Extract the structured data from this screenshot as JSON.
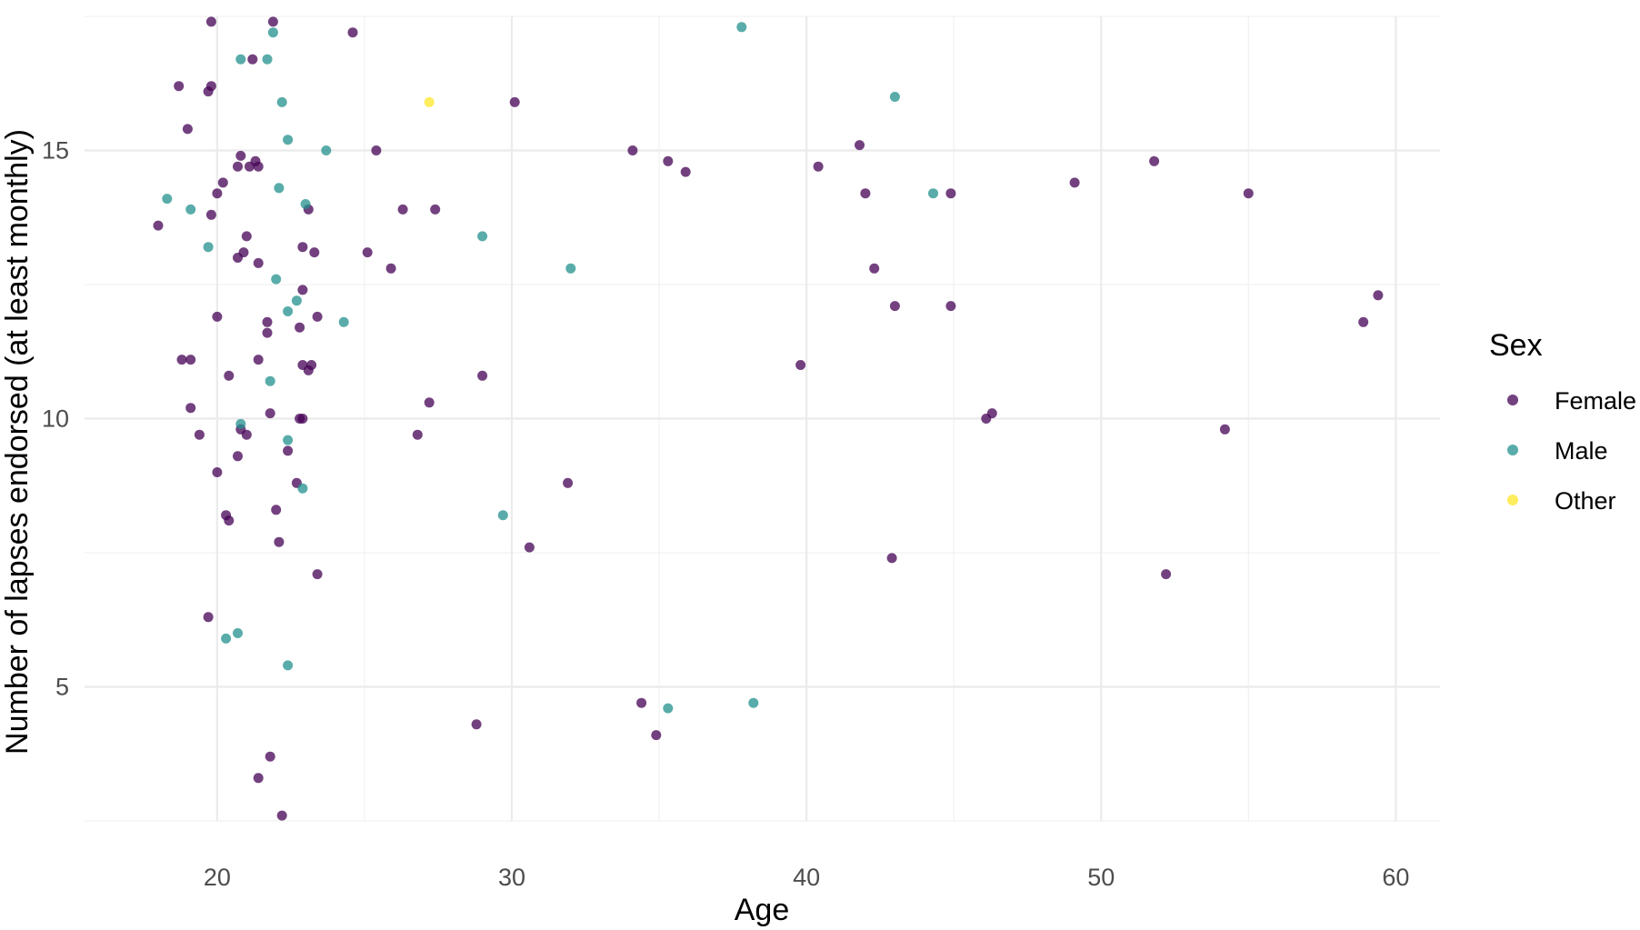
{
  "chart_data": {
    "type": "scatter",
    "title": "",
    "xlabel": "Age",
    "ylabel": "Number of lapses endorsed (at least monthly)",
    "xlim": [
      15.5,
      61.5
    ],
    "ylim": [
      2.5,
      17.5
    ],
    "xticks": [
      20,
      30,
      40,
      50,
      60
    ],
    "yticks": [
      5,
      10,
      15
    ],
    "grid": true,
    "legend": {
      "title": "Sex",
      "position": "right"
    },
    "series": [
      {
        "name": "Female",
        "color": "#440154",
        "points": [
          [
            19.8,
            17.4
          ],
          [
            21.9,
            17.4
          ],
          [
            24.6,
            17.2
          ],
          [
            21.2,
            16.7
          ],
          [
            18.7,
            16.2
          ],
          [
            19.8,
            16.2
          ],
          [
            19.7,
            16.1
          ],
          [
            19.0,
            15.4
          ],
          [
            30.1,
            15.9
          ],
          [
            25.4,
            15.0
          ],
          [
            34.1,
            15.0
          ],
          [
            41.8,
            15.1
          ],
          [
            20.8,
            14.9
          ],
          [
            21.3,
            14.8
          ],
          [
            21.1,
            14.7
          ],
          [
            20.7,
            14.7
          ],
          [
            21.4,
            14.7
          ],
          [
            35.3,
            14.8
          ],
          [
            35.9,
            14.6
          ],
          [
            40.4,
            14.7
          ],
          [
            51.8,
            14.8
          ],
          [
            20.2,
            14.4
          ],
          [
            20.0,
            14.2
          ],
          [
            49.1,
            14.4
          ],
          [
            42.0,
            14.2
          ],
          [
            44.9,
            14.2
          ],
          [
            55.0,
            14.2
          ],
          [
            18.0,
            13.6
          ],
          [
            19.8,
            13.8
          ],
          [
            23.1,
            13.9
          ],
          [
            26.3,
            13.9
          ],
          [
            27.4,
            13.9
          ],
          [
            21.0,
            13.4
          ],
          [
            22.9,
            13.2
          ],
          [
            23.3,
            13.1
          ],
          [
            25.1,
            13.1
          ],
          [
            20.9,
            13.1
          ],
          [
            20.7,
            13.0
          ],
          [
            21.4,
            12.9
          ],
          [
            25.9,
            12.8
          ],
          [
            42.3,
            12.8
          ],
          [
            22.9,
            12.4
          ],
          [
            43.0,
            12.1
          ],
          [
            44.9,
            12.1
          ],
          [
            59.4,
            12.3
          ],
          [
            20.0,
            11.9
          ],
          [
            21.7,
            11.8
          ],
          [
            23.4,
            11.9
          ],
          [
            21.7,
            11.6
          ],
          [
            22.8,
            11.7
          ],
          [
            58.9,
            11.8
          ],
          [
            18.8,
            11.1
          ],
          [
            19.1,
            11.1
          ],
          [
            21.4,
            11.1
          ],
          [
            22.9,
            11.0
          ],
          [
            23.1,
            10.9
          ],
          [
            23.2,
            11.0
          ],
          [
            39.8,
            11.0
          ],
          [
            20.4,
            10.8
          ],
          [
            29.0,
            10.8
          ],
          [
            27.2,
            10.3
          ],
          [
            19.1,
            10.2
          ],
          [
            21.8,
            10.1
          ],
          [
            22.8,
            10.0
          ],
          [
            22.9,
            10.0
          ],
          [
            46.1,
            10.0
          ],
          [
            46.3,
            10.1
          ],
          [
            19.4,
            9.7
          ],
          [
            20.8,
            9.8
          ],
          [
            21.0,
            9.7
          ],
          [
            26.8,
            9.7
          ],
          [
            54.2,
            9.8
          ],
          [
            20.7,
            9.3
          ],
          [
            22.4,
            9.4
          ],
          [
            20.0,
            9.0
          ],
          [
            22.7,
            8.8
          ],
          [
            31.9,
            8.8
          ],
          [
            22.0,
            8.3
          ],
          [
            20.3,
            8.2
          ],
          [
            20.4,
            8.1
          ],
          [
            22.1,
            7.7
          ],
          [
            30.6,
            7.6
          ],
          [
            42.9,
            7.4
          ],
          [
            23.4,
            7.1
          ],
          [
            52.2,
            7.1
          ],
          [
            19.7,
            6.3
          ],
          [
            34.4,
            4.7
          ],
          [
            28.8,
            4.3
          ],
          [
            34.9,
            4.1
          ],
          [
            21.8,
            3.7
          ],
          [
            21.4,
            3.3
          ],
          [
            22.2,
            2.6
          ]
        ]
      },
      {
        "name": "Male",
        "color": "#21908C",
        "points": [
          [
            37.8,
            17.3
          ],
          [
            21.9,
            17.2
          ],
          [
            20.8,
            16.7
          ],
          [
            21.7,
            16.7
          ],
          [
            22.2,
            15.9
          ],
          [
            43.0,
            16.0
          ],
          [
            22.4,
            15.2
          ],
          [
            23.7,
            15.0
          ],
          [
            18.3,
            14.1
          ],
          [
            22.1,
            14.3
          ],
          [
            44.3,
            14.2
          ],
          [
            19.1,
            13.9
          ],
          [
            23.0,
            14.0
          ],
          [
            29.0,
            13.4
          ],
          [
            19.7,
            13.2
          ],
          [
            32.0,
            12.8
          ],
          [
            22.0,
            12.6
          ],
          [
            22.7,
            12.2
          ],
          [
            22.4,
            12.0
          ],
          [
            24.3,
            11.8
          ],
          [
            21.8,
            10.7
          ],
          [
            20.8,
            9.9
          ],
          [
            22.4,
            9.6
          ],
          [
            22.9,
            8.7
          ],
          [
            29.7,
            8.2
          ],
          [
            20.3,
            5.9
          ],
          [
            20.7,
            6.0
          ],
          [
            22.4,
            5.4
          ],
          [
            38.2,
            4.7
          ],
          [
            35.3,
            4.6
          ]
        ]
      },
      {
        "name": "Other",
        "color": "#FDE725",
        "points": [
          [
            27.2,
            15.9
          ]
        ]
      }
    ]
  }
}
